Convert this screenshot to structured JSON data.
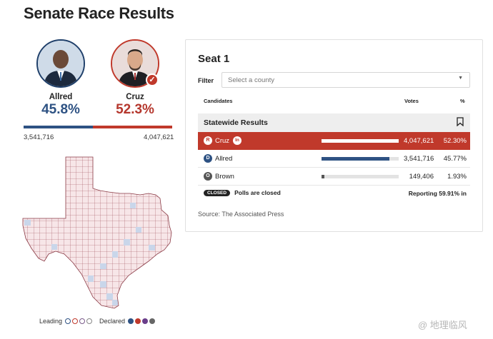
{
  "page": {
    "title": "Senate Race Results"
  },
  "candidates": [
    {
      "name": "Allred",
      "pct": "45.8%",
      "votes": "3,541,716",
      "party": "D",
      "color": "#2e5283"
    },
    {
      "name": "Cruz",
      "pct": "52.3%",
      "votes": "4,047,621",
      "party": "R",
      "color": "#c0392b",
      "declared_winner": true
    }
  ],
  "vote_share": {
    "dem": 45.8,
    "rep": 52.3
  },
  "legend": {
    "leading": "Leading",
    "declared": "Declared"
  },
  "card": {
    "seat": "Seat 1",
    "filter_label": "Filter",
    "filter_placeholder": "Select a county",
    "columns": {
      "candidates": "Candidates",
      "votes": "Votes",
      "pct": "%"
    },
    "section": "Statewide Results",
    "rows": [
      {
        "badge": "R",
        "name": "Cruz",
        "incumbent": "In",
        "votes": "4,047,621",
        "pct": "52.30%",
        "share": 52.3,
        "winner": true,
        "color": "#c0392b"
      },
      {
        "badge": "D",
        "name": "Allred",
        "votes": "3,541,716",
        "pct": "45.77%",
        "share": 45.77,
        "winner": false,
        "color": "#2e5283"
      },
      {
        "badge": "O",
        "name": "Brown",
        "votes": "149,406",
        "pct": "1.93%",
        "share": 1.93,
        "winner": false,
        "color": "#555555"
      }
    ],
    "status": {
      "closed": "CLOSED",
      "text": "Polls are closed",
      "reporting": "Reporting 59.91% in"
    },
    "source": "Source: The Associated Press"
  },
  "watermark": "@ 地理临风",
  "icons": {
    "winner_check": "check-icon",
    "bookmark": "bookmark-icon",
    "dropdown": "caret-down-icon"
  }
}
